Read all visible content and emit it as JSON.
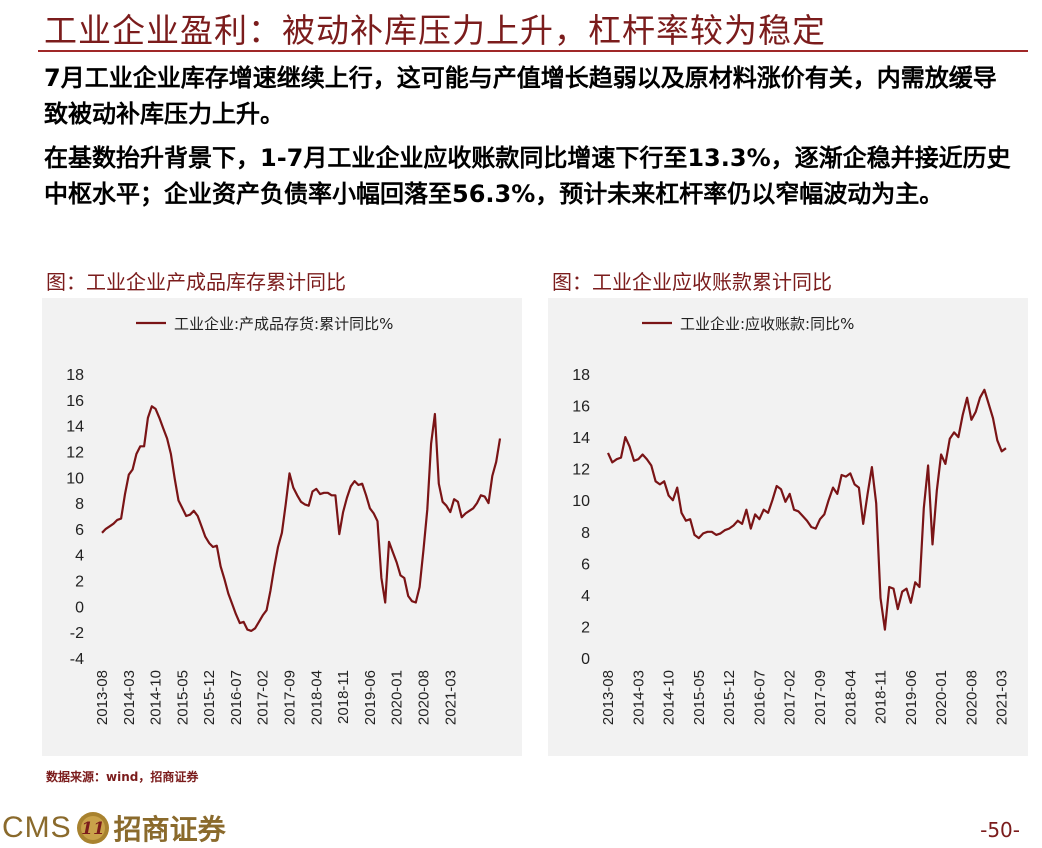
{
  "title": "工业企业盈利：被动补库压力上升，杠杆率较为稳定",
  "paragraphs": [
    "7月工业企业库存增速继续上行，这可能与产值增长趋弱以及原材料涨价有关，内需放缓导致被动补库压力上升。",
    "在基数抬升背景下，1-7月工业企业应收账款同比增速下行至13.3%，逐渐企稳并接近历史中枢水平；企业资产负债率小幅回落至56.3%，预计未来杠杆率仍以窄幅波动为主。"
  ],
  "source": "数据来源：wind，招商证券",
  "logo": {
    "latin": "CMS",
    "mark": "11",
    "chinese": "招商证券"
  },
  "page_number": "-50-",
  "colors": {
    "series": "#7a1416",
    "accent": "#a02828",
    "panel_bg": "#f2f2f2"
  },
  "chart_data": [
    {
      "type": "line",
      "caption": "图：工业企业产成品库存累计同比",
      "legend": "工业企业:产成品存货:累计同比%",
      "ylim": [
        -4,
        18
      ],
      "yticks": [
        -4,
        -2,
        0,
        2,
        4,
        6,
        8,
        10,
        12,
        14,
        16,
        18
      ],
      "xticks": [
        "2013-08",
        "2014-03",
        "2014-10",
        "2015-05",
        "2015-12",
        "2016-07",
        "2017-02",
        "2017-09",
        "2018-04",
        "2018-11",
        "2019-06",
        "2020-01",
        "2020-08",
        "2021-03"
      ],
      "start": "2013-08",
      "values": [
        5.7,
        6.0,
        6.2,
        6.4,
        6.7,
        6.8,
        8.7,
        10.2,
        10.6,
        11.8,
        12.4,
        12.4,
        14.6,
        15.5,
        15.3,
        14.6,
        13.8,
        13.0,
        11.8,
        9.9,
        8.2,
        7.6,
        7.0,
        7.1,
        7.4,
        7.0,
        6.2,
        5.4,
        4.9,
        4.6,
        4.7,
        3.1,
        2.1,
        1.0,
        0.2,
        -0.6,
        -1.3,
        -1.2,
        -1.8,
        -1.9,
        -1.7,
        -1.2,
        -0.7,
        -0.3,
        1.2,
        3.0,
        4.6,
        5.7,
        7.9,
        10.3,
        9.2,
        8.6,
        8.1,
        7.9,
        7.8,
        8.9,
        9.1,
        8.7,
        8.8,
        8.8,
        8.6,
        8.6,
        5.6,
        7.3,
        8.4,
        9.3,
        9.7,
        9.4,
        9.5,
        8.6,
        7.6,
        7.2,
        6.6,
        2.2,
        0.3,
        5.0,
        4.2,
        3.4,
        2.4,
        2.2,
        0.8,
        0.4,
        0.3,
        1.5,
        4.4,
        7.5,
        12.6,
        14.9,
        9.5,
        8.1,
        7.8,
        7.3,
        8.3,
        8.1,
        6.9,
        7.2,
        7.4,
        7.6,
        8.0,
        8.6,
        8.5,
        8.0,
        10.1,
        11.2,
        13.0
      ]
    },
    {
      "type": "line",
      "caption": "图：工业企业应收账款累计同比",
      "legend": "工业企业:应收账款:同比%",
      "ylim": [
        0,
        18
      ],
      "yticks": [
        0,
        2,
        4,
        6,
        8,
        10,
        12,
        14,
        16,
        18
      ],
      "xticks": [
        "2013-08",
        "2014-03",
        "2014-10",
        "2015-05",
        "2015-12",
        "2016-07",
        "2017-02",
        "2017-09",
        "2018-04",
        "2018-11",
        "2019-06",
        "2020-01",
        "2020-08",
        "2021-03"
      ],
      "start": "2013-08",
      "values": [
        13.0,
        12.4,
        12.6,
        12.7,
        14.0,
        13.4,
        12.5,
        12.6,
        12.9,
        12.6,
        12.2,
        11.2,
        11.0,
        11.2,
        10.3,
        10.0,
        10.8,
        9.2,
        8.7,
        8.8,
        7.8,
        7.6,
        7.9,
        8.0,
        8.0,
        7.8,
        7.9,
        8.1,
        8.2,
        8.4,
        8.7,
        8.5,
        9.4,
        8.2,
        9.1,
        8.8,
        9.4,
        9.2,
        10.0,
        10.9,
        10.7,
        9.9,
        10.4,
        9.4,
        9.3,
        9.0,
        8.7,
        8.3,
        8.2,
        8.8,
        9.1,
        10.0,
        10.8,
        10.4,
        11.6,
        11.5,
        11.7,
        11.0,
        10.8,
        8.5,
        10.4,
        12.1,
        9.8,
        3.8,
        1.8,
        4.5,
        4.4,
        3.1,
        4.2,
        4.4,
        3.5,
        4.8,
        4.5,
        9.5,
        12.2,
        7.2,
        10.6,
        12.9,
        12.3,
        13.9,
        14.3,
        14.0,
        15.4,
        16.5,
        15.1,
        15.6,
        16.5,
        17.0,
        16.1,
        15.2,
        13.8,
        13.1,
        13.3
      ]
    }
  ]
}
